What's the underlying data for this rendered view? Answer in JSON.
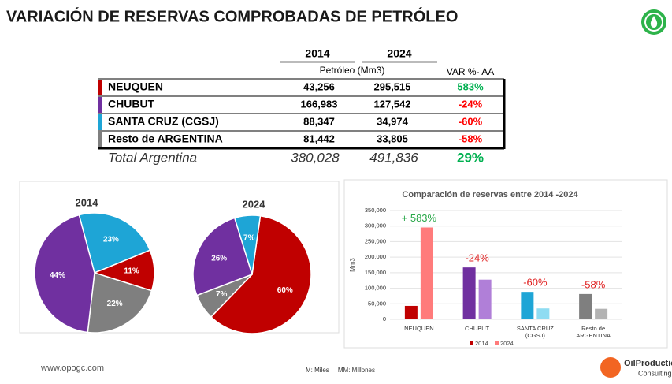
{
  "title": "VARIACIÓN DE RESERVAS COMPROBADAS DE PETRÓLEO",
  "table": {
    "columns": [
      "2014",
      "2024"
    ],
    "unit": "Petróleo (Mm3)",
    "change_header": "VAR %- AA",
    "rows": [
      [
        "NEUQUEN",
        "43,256",
        "295,515",
        "583%"
      ],
      [
        "CHUBUT",
        "166,983",
        "127,542",
        "-24%"
      ],
      [
        "SANTA CRUZ (CGSJ)",
        "88,347",
        "34,974",
        "-60%"
      ],
      [
        "Resto de ARGENTINA",
        "81,442",
        "33,805",
        "-58%"
      ]
    ],
    "row_colors": [
      "#c00000",
      "#7030a0",
      "#1ea5d6",
      "#7f7f7f"
    ],
    "change_colors": [
      "#00b050",
      "#ff0000",
      "#ff0000",
      "#ff0000"
    ],
    "total": [
      "Total Argentina",
      "380,028",
      "491,836",
      "29%"
    ],
    "total_change_color": "#00b050"
  },
  "chart_data": [
    {
      "type": "pie",
      "title": "2014",
      "values": [
        23,
        11,
        22,
        44
      ],
      "value_labels": [
        "23%",
        "11%",
        "22%",
        "44%"
      ],
      "colors": [
        "#1ea5d6",
        "#c00000",
        "#7f7f7f",
        "#7030a0"
      ]
    },
    {
      "type": "pie",
      "title": "2024",
      "values": [
        60,
        7,
        26,
        7
      ],
      "value_labels": [
        "60%",
        "7%",
        "26%",
        "7%"
      ],
      "colors": [
        "#c00000",
        "#7f7f7f",
        "#7030a0",
        "#1ea5d6"
      ]
    },
    {
      "type": "bar",
      "title": "Comparación de reservas entre 2014 -2024",
      "y_label": "Mm3",
      "categories": [
        "NEUQUEN",
        "CHUBUT",
        "SANTA CRUZ (CGSJ)",
        "Resto de ARGENTINA"
      ],
      "series": [
        {
          "name": "2014",
          "color": "#c00000",
          "colors": [
            "#c00000",
            "#7030a0",
            "#1ea5d6",
            "#7f7f7f"
          ],
          "values": [
            43256,
            166983,
            88347,
            81442
          ]
        },
        {
          "name": "2024",
          "color": "#ff7b7b",
          "colors": [
            "#ff7b7b",
            "#b07fd8",
            "#8fdcf2",
            "#b3b3b3"
          ],
          "values": [
            295515,
            127542,
            34974,
            33805
          ]
        }
      ],
      "annotations": [
        {
          "text": "+ 583%",
          "color": "#2aa84a"
        },
        {
          "text": "-24%",
          "color": "#e02020"
        },
        {
          "text": "-60%",
          "color": "#e02020"
        },
        {
          "text": "-58%",
          "color": "#e02020"
        }
      ],
      "ylim": [
        0,
        350000
      ],
      "yticks": [
        0,
        {
          "value": 50000,
          "label": "50,000"
        },
        {
          "value": 100000,
          "label": "100,000"
        },
        {
          "value": 150000,
          "label": "150,000"
        },
        {
          "value": 200000,
          "label": "200,000"
        },
        {
          "value": 250000,
          "label": "250,000"
        },
        {
          "value": 300000,
          "label": "300,000"
        },
        {
          "value": 350000,
          "label": "350,000"
        }
      ],
      "grid": true,
      "legend": "bottom"
    }
  ],
  "footer": {
    "url": "www.opogc.com",
    "note": "M: Miles     MM: Millones",
    "logo": [
      "OilProduction",
      "Consulting"
    ]
  }
}
